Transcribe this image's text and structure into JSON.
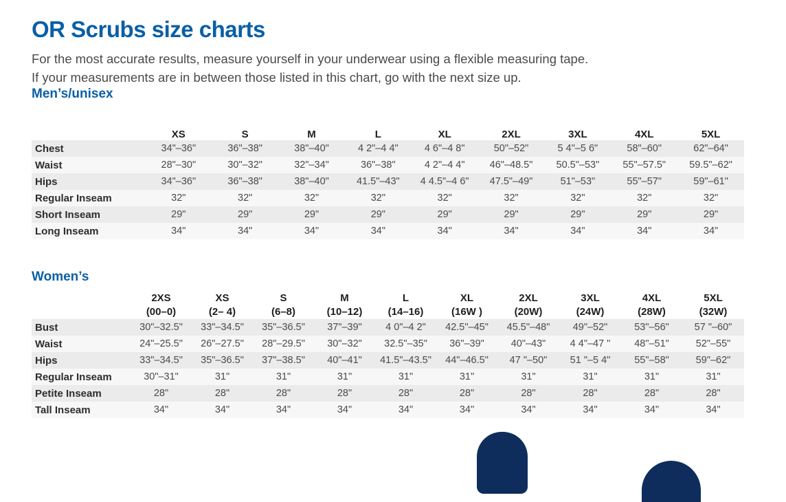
{
  "title": "OR Scrubs size charts",
  "intro": [
    "For the most accurate results, measure yourself in your underwear using a flexible measuring tape.",
    "If your measurements are in between those listed in this chart, go with the next size up."
  ],
  "men": {
    "heading": "Men’s/unisex",
    "sizes": [
      "XS",
      "S",
      "M",
      "L",
      "XL",
      "2XL",
      "3XL",
      "4XL",
      "5XL"
    ],
    "rows": [
      {
        "label": "Chest",
        "values": [
          "34\"–36\"",
          "36\"–38\"",
          "38\"–40\"",
          "4 2\"–4 4\"",
          "4 6\"–4 8\"",
          "50\"–52\"",
          "5 4\"–5 6\"",
          "58\"–60\"",
          "62\"–64\""
        ]
      },
      {
        "label": "Waist",
        "values": [
          "28\"–30\"",
          "30\"–32\"",
          "32\"–34\"",
          "36\"–38\"",
          "4 2\"–4 4\"",
          "46\"–48.5\"",
          "50.5\"–53\"",
          "55\"–57.5\"",
          "59.5\"–62\""
        ]
      },
      {
        "label": "Hips",
        "values": [
          "34\"–36\"",
          "36\"–38\"",
          "38\"–40\"",
          "41.5\"–43\"",
          "4 4.5\"–4 6\"",
          "47.5\"–49\"",
          "51\"–53\"",
          "55\"–57\"",
          "59\"–61\""
        ]
      },
      {
        "label": "Regular Inseam",
        "values": [
          "32\"",
          "32\"",
          "32\"",
          "32\"",
          "32\"",
          "32\"",
          "32\"",
          "32\"",
          "32\""
        ]
      },
      {
        "label": "Short Inseam",
        "values": [
          "29\"",
          "29\"",
          "29\"",
          "29\"",
          "29\"",
          "29\"",
          "29\"",
          "29\"",
          "29\""
        ]
      },
      {
        "label": "Long Inseam",
        "values": [
          "34\"",
          "34\"",
          "34\"",
          "34\"",
          "34\"",
          "34\"",
          "34\"",
          "34\"",
          "34\""
        ]
      }
    ]
  },
  "women": {
    "heading": "Women’s",
    "sizes": [
      {
        "size": "2XS",
        "sub": "(00–0)"
      },
      {
        "size": "XS",
        "sub": "(2– 4)"
      },
      {
        "size": "S",
        "sub": "(6–8)"
      },
      {
        "size": "M",
        "sub": "(10–12)"
      },
      {
        "size": "L",
        "sub": "(14–16)"
      },
      {
        "size": "XL",
        "sub": "(16W )"
      },
      {
        "size": "2XL",
        "sub": "(20W)"
      },
      {
        "size": "3XL",
        "sub": "(24W)"
      },
      {
        "size": "4XL",
        "sub": "(28W)"
      },
      {
        "size": "5XL",
        "sub": "(32W)"
      }
    ],
    "rows": [
      {
        "label": "Bust",
        "values": [
          "30\"–32.5\"",
          "33\"–34.5\"",
          "35\"–36.5\"",
          "37\"–39\"",
          "4 0\"–4 2\"",
          "42.5\"–45\"",
          "45.5\"–48\"",
          "49\"–52\"",
          "53\"–56\"",
          "57 \"–60\""
        ]
      },
      {
        "label": "Waist",
        "values": [
          "24\"–25.5\"",
          "26\"–27.5\"",
          "28\"–29.5\"",
          "30\"–32\"",
          "32.5\"–35\"",
          "36\"–39\"",
          "40\"–43\"",
          "4 4\"–47 \"",
          "48\"–51\"",
          "52\"–55\""
        ]
      },
      {
        "label": "Hips",
        "values": [
          "33\"–34.5\"",
          "35\"–36.5\"",
          "37\"–38.5\"",
          "40\"–41\"",
          "41.5\"–43.5\"",
          "44\"–46.5\"",
          "47 \"–50\"",
          "51 \"–5 4\"",
          "55\"–58\"",
          "59\"–62\""
        ]
      },
      {
        "label": "Regular Inseam",
        "values": [
          "30\"–31\"",
          "31\"",
          "31\"",
          "31\"",
          "31\"",
          "31\"",
          "31\"",
          "31\"",
          "31\"",
          "31\""
        ]
      },
      {
        "label": "Petite Inseam",
        "values": [
          "28\"",
          "28\"",
          "28\"",
          "28\"",
          "28\"",
          "28\"",
          "28\"",
          "28\"",
          "28\"",
          "28\""
        ]
      },
      {
        "label": "Tall Inseam",
        "values": [
          "34\"",
          "34\"",
          "34\"",
          "34\"",
          "34\"",
          "34\"",
          "34\"",
          "34\"",
          "34\"",
          "34\""
        ]
      }
    ]
  },
  "colors": {
    "brand": "#0a5fa6",
    "silhouette": "#0e2d5c",
    "row_odd": "#ebebeb",
    "row_even": "#f7f7f7"
  },
  "figures": [
    "male-silhouette-icon",
    "female-silhouette-icon"
  ]
}
